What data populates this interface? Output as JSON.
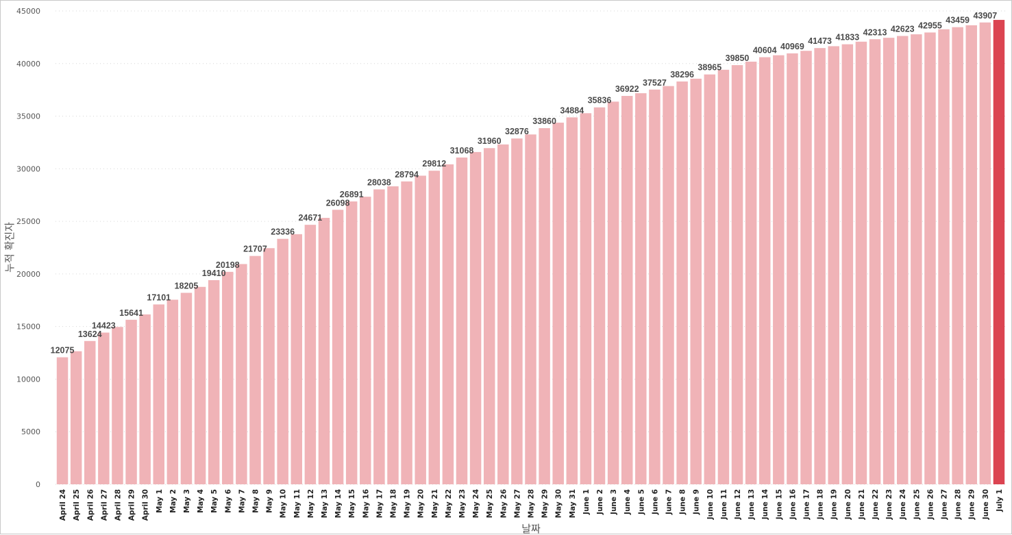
{
  "chart_data": {
    "type": "bar",
    "title": "",
    "xlabel": "날짜",
    "ylabel": "누적 확진자",
    "ylim": [
      0,
      45000
    ],
    "yticks": [
      0,
      5000,
      10000,
      15000,
      20000,
      25000,
      30000,
      35000,
      40000,
      45000
    ],
    "grid": true,
    "colors": {
      "bar": "#f0b3b7",
      "highlight": "#db4451"
    },
    "highlight_index": 68,
    "categories": [
      "April 24",
      "April 25",
      "April 26",
      "April 27",
      "April 28",
      "April 29",
      "April 30",
      "May 1",
      "May 2",
      "May 3",
      "May 4",
      "May 5",
      "May 6",
      "May 7",
      "May 8",
      "May 9",
      "May 10",
      "May 11",
      "May 12",
      "May 13",
      "May 14",
      "May 15",
      "May 16",
      "May 17",
      "May 18",
      "May 19",
      "May 20",
      "May 21",
      "May 22",
      "May 23",
      "May 24",
      "May 25",
      "May 26",
      "May 27",
      "May 28",
      "May 29",
      "May 30",
      "May 31",
      "June 1",
      "June 2",
      "June 3",
      "June 4",
      "June 5",
      "June 6",
      "June 7",
      "June 8",
      "June 9",
      "June 10",
      "June 11",
      "June 12",
      "June 13",
      "June 14",
      "June 15",
      "June 16",
      "June 17",
      "June 18",
      "June 19",
      "June 20",
      "June 21",
      "June 22",
      "June 23",
      "June 24",
      "June 25",
      "June 26",
      "June 27",
      "June 28",
      "June 29",
      "June 30",
      "July 1"
    ],
    "values": [
      12075,
      12650,
      13624,
      14423,
      14960,
      15641,
      16150,
      17101,
      17550,
      18205,
      18770,
      19410,
      20198,
      20940,
      21707,
      22450,
      23336,
      23780,
      24671,
      25330,
      26098,
      26891,
      27340,
      28038,
      28330,
      28794,
      29340,
      29812,
      30420,
      31068,
      31590,
      31960,
      32310,
      32876,
      33260,
      33860,
      34380,
      34884,
      35280,
      35836,
      36380,
      36922,
      37180,
      37527,
      37860,
      38296,
      38560,
      38965,
      39410,
      39850,
      40180,
      40604,
      40790,
      40969,
      41210,
      41473,
      41650,
      41833,
      42080,
      42313,
      42450,
      42623,
      42780,
      42955,
      43260,
      43459,
      43640,
      43907,
      44150
    ],
    "data_labels": [
      {
        "index": 0,
        "text": "12075"
      },
      {
        "index": 2,
        "text": "13624"
      },
      {
        "index": 3,
        "text": "14423"
      },
      {
        "index": 5,
        "text": "15641"
      },
      {
        "index": 7,
        "text": "17101"
      },
      {
        "index": 9,
        "text": "18205"
      },
      {
        "index": 11,
        "text": "19410"
      },
      {
        "index": 12,
        "text": "20198"
      },
      {
        "index": 14,
        "text": "21707"
      },
      {
        "index": 16,
        "text": "23336"
      },
      {
        "index": 18,
        "text": "24671"
      },
      {
        "index": 20,
        "text": "26098"
      },
      {
        "index": 21,
        "text": "26891"
      },
      {
        "index": 23,
        "text": "28038"
      },
      {
        "index": 25,
        "text": "28794"
      },
      {
        "index": 27,
        "text": "29812"
      },
      {
        "index": 29,
        "text": "31068"
      },
      {
        "index": 31,
        "text": "31960"
      },
      {
        "index": 33,
        "text": "32876"
      },
      {
        "index": 35,
        "text": "33860"
      },
      {
        "index": 37,
        "text": "34884"
      },
      {
        "index": 39,
        "text": "35836"
      },
      {
        "index": 41,
        "text": "36922"
      },
      {
        "index": 43,
        "text": "37527"
      },
      {
        "index": 45,
        "text": "38296"
      },
      {
        "index": 47,
        "text": "38965"
      },
      {
        "index": 49,
        "text": "39850"
      },
      {
        "index": 51,
        "text": "40604"
      },
      {
        "index": 53,
        "text": "40969"
      },
      {
        "index": 55,
        "text": "41473"
      },
      {
        "index": 57,
        "text": "41833"
      },
      {
        "index": 59,
        "text": "42313"
      },
      {
        "index": 61,
        "text": "42623"
      },
      {
        "index": 63,
        "text": "42955"
      },
      {
        "index": 65,
        "text": "43459"
      },
      {
        "index": 67,
        "text": "43907"
      }
    ]
  }
}
